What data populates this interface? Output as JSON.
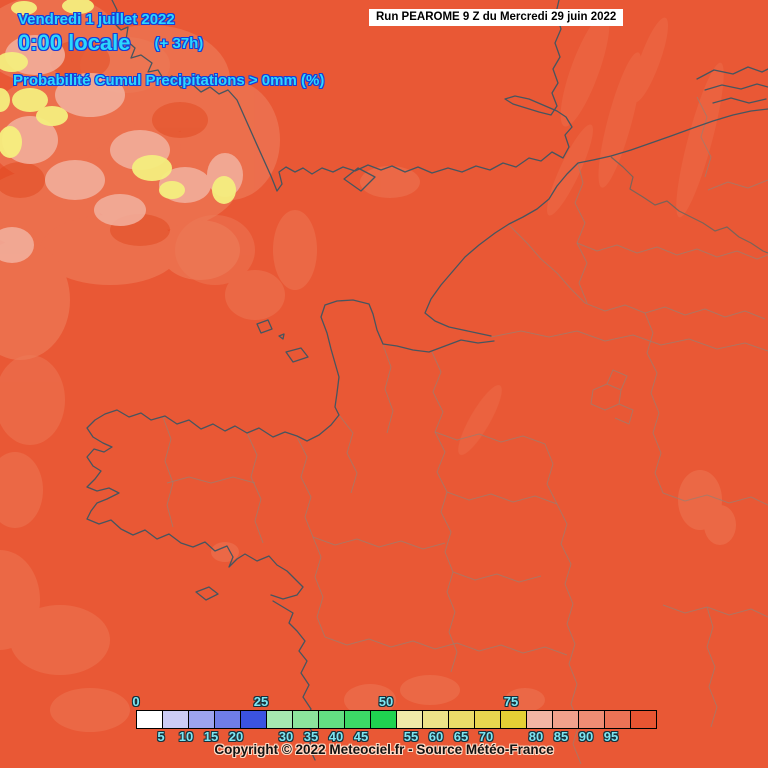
{
  "header": {
    "date_line": "Vendredi 1 juillet 2022",
    "time_line": "0:00 locale",
    "time_offset": "(+ 37h)",
    "map_title": "Probabilité Cumul Precipitations > 0mm (%)"
  },
  "run_info": {
    "text": "Run PEAROME 9 Z du Mercredi 29 juin 2022"
  },
  "legend": {
    "unit": "%",
    "values": [
      0,
      5,
      10,
      15,
      20,
      25,
      30,
      35,
      40,
      45,
      50,
      55,
      60,
      65,
      70,
      75,
      80,
      85,
      90,
      95
    ],
    "colors": [
      "#ffffff",
      "#ccccf5",
      "#9da4ef",
      "#6f7de8",
      "#3b53e0",
      "#a6e9b1",
      "#8ce59c",
      "#63df82",
      "#3cd966",
      "#1fd350",
      "#f0eaa8",
      "#ede388",
      "#eadc69",
      "#e8d64f",
      "#e5d035",
      "#f3b5a4",
      "#f1a18c",
      "#ef8d74",
      "#ec7356",
      "#e85532"
    ],
    "major_tick_step": 25
  },
  "footer": {
    "copyright": "Copyright © 2022 Meteociel.fr - Source Météo-France"
  },
  "colors": {
    "map_base": "#e95835",
    "light_patch": "#ef8260",
    "pink_patch": "#f3b19f",
    "yellow_patch": "#f5ee7e",
    "coastline": "#47555f",
    "department_border": "#9c7e6f",
    "header_text": "#2bd7ff",
    "header_outline": "#1b3ed6",
    "legend_label": "#7de6f2",
    "legend_cell_border": "#000000",
    "run_box_bg": "#ffffff",
    "run_box_text": "#000000"
  }
}
